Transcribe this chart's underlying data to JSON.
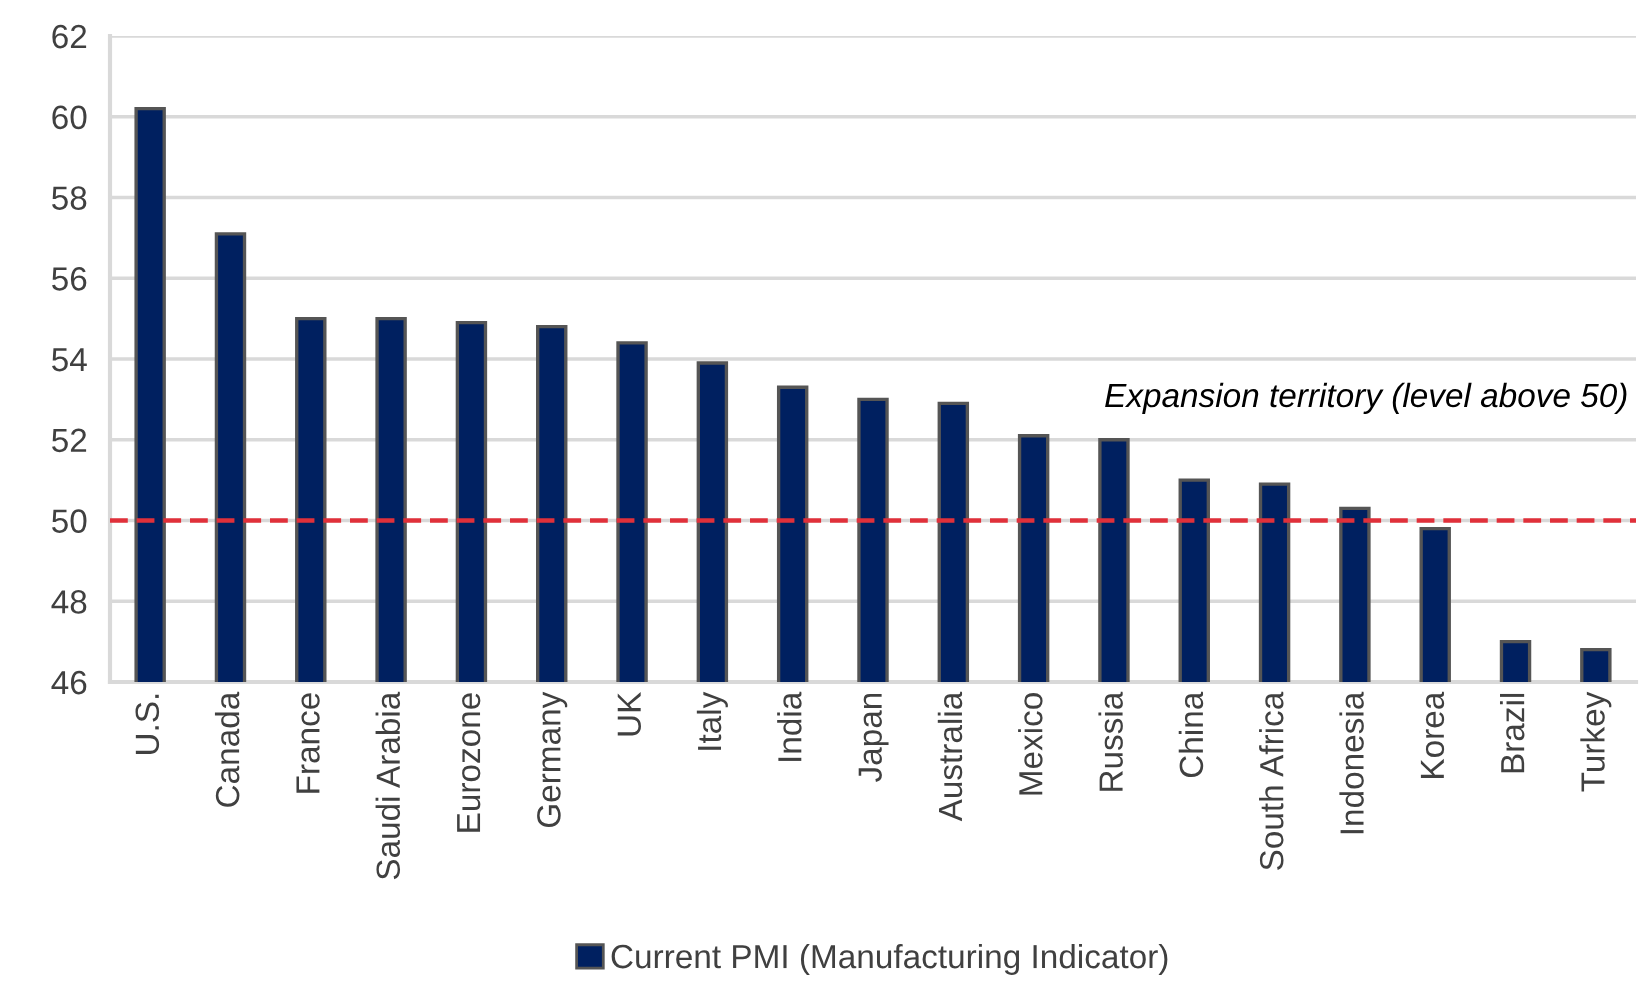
{
  "chart_data": {
    "type": "bar",
    "categories": [
      "U.S.",
      "Canada",
      "France",
      "Saudi Arabia",
      "Eurozone",
      "Germany",
      "UK",
      "Italy",
      "India",
      "Japan",
      "Australia",
      "Mexico",
      "Russia",
      "China",
      "South Africa",
      "Indonesia",
      "Korea",
      "Brazil",
      "Turkey"
    ],
    "series": [
      {
        "name": "Current PMI (Manufacturing Indicator)",
        "color": "#002060",
        "values": [
          60.2,
          57.1,
          55.0,
          55.0,
          54.9,
          54.8,
          54.4,
          53.9,
          53.3,
          53.0,
          52.9,
          52.1,
          52.0,
          51.0,
          50.9,
          50.3,
          49.8,
          47.0,
          46.8
        ]
      }
    ],
    "ylim": [
      46,
      62
    ],
    "yticks": [
      46,
      48,
      50,
      52,
      54,
      56,
      58,
      60,
      62
    ],
    "grid": "y",
    "legend": "bottom",
    "annotations": [
      "Expansion territory (level above 50)"
    ],
    "ref_lines": [
      {
        "axis": "y",
        "value": 50,
        "color": "#e0303a",
        "line_style": "dashed"
      }
    ]
  }
}
